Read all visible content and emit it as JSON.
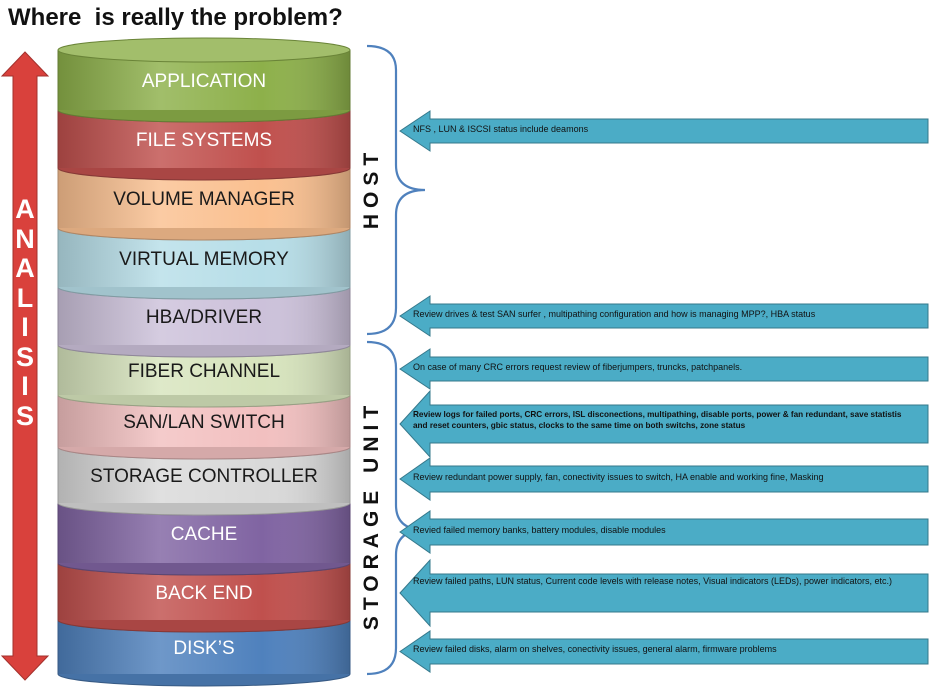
{
  "title": "Where  is really the problem?",
  "analisis_letters": [
    "A",
    "N",
    "A",
    "L",
    "I",
    "S",
    "I",
    "S"
  ],
  "colors": {
    "application": "#8db04a",
    "file_systems": "#c0504d",
    "volume_manager": "#fac090",
    "virtual_memory": "#b7dee8",
    "hba_driver": "#ccc1da",
    "fiber_channel": "#d7e4bd",
    "san_lan_switch": "#f2c0c0",
    "storage_controller": "#d9d9d9",
    "cache": "#8064a2",
    "back_end": "#c0504d",
    "disks": "#4f81bd",
    "arrow_red": "#d9413c",
    "callout_blue": "#4bacc6",
    "brace_blue": "#4f81bd"
  },
  "layers": [
    {
      "label": "APPLICATION",
      "color_key": "application"
    },
    {
      "label": "FILE SYSTEMS",
      "color_key": "file_systems"
    },
    {
      "label": "VOLUME MANAGER",
      "color_key": "volume_manager"
    },
    {
      "label": "VIRTUAL MEMORY",
      "color_key": "virtual_memory"
    },
    {
      "label": "HBA/DRIVER",
      "color_key": "hba_driver"
    },
    {
      "label": "FIBER CHANNEL",
      "color_key": "fiber_channel"
    },
    {
      "label": "SAN/LAN SWITCH",
      "color_key": "san_lan_switch"
    },
    {
      "label": "STORAGE CONTROLLER",
      "color_key": "storage_controller"
    },
    {
      "label": "CACHE",
      "color_key": "cache"
    },
    {
      "label": "BACK END",
      "color_key": "back_end"
    },
    {
      "label": "DISK’S",
      "color_key": "disks"
    }
  ],
  "groups": {
    "host": "HOST",
    "storage": "STORAGE   UNIT"
  },
  "notes": [
    "NFS , LUN & ISCSI status include deamons",
    "Review drives & test SAN surfer , multipathing configuration and how is managing MPP?, HBA status",
    "On case of many CRC errors request review of fiberjumpers, truncks, patchpanels.",
    "Review logs for failed ports, CRC errors, ISL disconections, multipathing, disable ports, power & fan redundant, save statistis and reset counters, gbic status, clocks to the same time on both switchs, zone status",
    "Review  redundant power supply, fan, conectivity issues to switch, HA enable and working fine,  Masking",
    "Revied failed memory banks, battery modules, disable modules",
    "Review failed paths,  LUN status, Current code levels with release notes, Visual indicators (LEDs), power indicators, etc.)",
    "Review failed disks, alarm on shelves, conectivity issues, general alarm, firmware problems"
  ]
}
